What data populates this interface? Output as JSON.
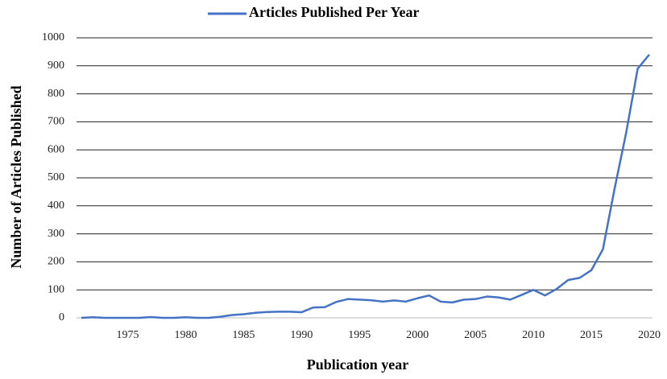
{
  "chart_data": {
    "type": "line",
    "x_label": "Publication year",
    "y_label": "Number of Articles Published",
    "x": [
      1971,
      1972,
      1973,
      1974,
      1975,
      1976,
      1977,
      1978,
      1979,
      1980,
      1981,
      1982,
      1983,
      1984,
      1985,
      1986,
      1987,
      1988,
      1989,
      1990,
      1991,
      1992,
      1993,
      1994,
      1995,
      1996,
      1997,
      1998,
      1999,
      2000,
      2001,
      2002,
      2003,
      2004,
      2005,
      2006,
      2007,
      2008,
      2009,
      2010,
      2011,
      2012,
      2013,
      2014,
      2015,
      2016,
      2017,
      2018,
      2019,
      2020
    ],
    "series": [
      {
        "name": "Articles Published Per Year",
        "color": "#4472c4",
        "values": [
          0,
          2,
          0,
          0,
          0,
          0,
          3,
          0,
          0,
          2,
          0,
          0,
          4,
          10,
          13,
          18,
          21,
          22,
          22,
          20,
          37,
          38,
          57,
          67,
          65,
          63,
          58,
          62,
          58,
          70,
          80,
          58,
          55,
          65,
          67,
          76,
          73,
          65,
          82,
          100,
          80,
          103,
          135,
          143,
          170,
          245,
          460,
          660,
          890,
          940
        ]
      }
    ],
    "xlim": [
      1971,
      2020
    ],
    "xticks": [
      1975,
      1980,
      1985,
      1990,
      1995,
      2000,
      2005,
      2010,
      2015,
      2020
    ],
    "ylim": [
      0,
      1000
    ],
    "yticks": [
      0,
      100,
      200,
      300,
      400,
      500,
      600,
      700,
      800,
      900,
      1000
    ],
    "grid": true,
    "legend": "top"
  }
}
